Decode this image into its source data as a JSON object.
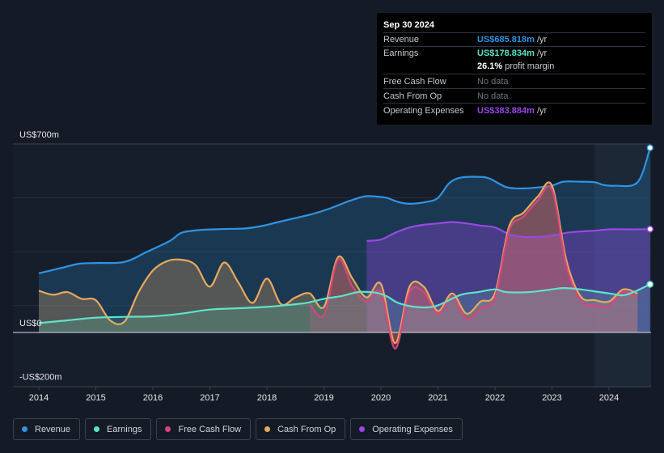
{
  "tooltip": {
    "date": "Sep 30 2024",
    "rows": {
      "revenue": {
        "label": "Revenue",
        "value": "US$685.818m",
        "unit": "/yr"
      },
      "earnings": {
        "label": "Earnings",
        "value": "US$178.834m",
        "unit": "/yr"
      },
      "margin": {
        "value": "26.1%",
        "text": "profit margin"
      },
      "fcf": {
        "label": "Free Cash Flow",
        "value": "No data"
      },
      "cfo": {
        "label": "Cash From Op",
        "value": "No data"
      },
      "opex": {
        "label": "Operating Expenses",
        "value": "US$383.884m",
        "unit": "/yr"
      }
    }
  },
  "legend": [
    {
      "label": "Revenue",
      "color": "#2e94e4"
    },
    {
      "label": "Earnings",
      "color": "#5fe3c8"
    },
    {
      "label": "Free Cash Flow",
      "color": "#d9457a"
    },
    {
      "label": "Cash From Op",
      "color": "#e8a95c"
    },
    {
      "label": "Operating Expenses",
      "color": "#9b47e6"
    }
  ],
  "chart_data": {
    "type": "line",
    "title": "",
    "xlabel": "",
    "ylabel": "",
    "xlim": [
      2013.8,
      2024.75
    ],
    "ylim": [
      -200,
      700
    ],
    "y_tick_labels": [
      {
        "value": 700,
        "label": "US$700m"
      },
      {
        "value": 0,
        "label": "US$0"
      },
      {
        "value": -200,
        "label": "-US$200m"
      }
    ],
    "x_tick_labels": [
      "2014",
      "2015",
      "2016",
      "2017",
      "2018",
      "2019",
      "2020",
      "2021",
      "2022",
      "2023",
      "2024"
    ],
    "highlight_from": 2023.75,
    "series": [
      {
        "name": "Revenue",
        "color": "#2e94e4",
        "points": [
          [
            2014.0,
            220
          ],
          [
            2014.4,
            240
          ],
          [
            2014.7,
            255
          ],
          [
            2015.0,
            258
          ],
          [
            2015.5,
            262
          ],
          [
            2015.9,
            300
          ],
          [
            2016.3,
            340
          ],
          [
            2016.5,
            370
          ],
          [
            2016.8,
            380
          ],
          [
            2017.2,
            384
          ],
          [
            2017.6,
            386
          ],
          [
            2017.9,
            395
          ],
          [
            2018.2,
            410
          ],
          [
            2018.5,
            425
          ],
          [
            2018.8,
            440
          ],
          [
            2019.1,
            460
          ],
          [
            2019.4,
            485
          ],
          [
            2019.7,
            505
          ],
          [
            2019.9,
            505
          ],
          [
            2020.1,
            500
          ],
          [
            2020.3,
            485
          ],
          [
            2020.5,
            478
          ],
          [
            2020.8,
            485
          ],
          [
            2021.0,
            500
          ],
          [
            2021.2,
            555
          ],
          [
            2021.4,
            575
          ],
          [
            2021.7,
            578
          ],
          [
            2021.9,
            572
          ],
          [
            2022.2,
            540
          ],
          [
            2022.5,
            535
          ],
          [
            2022.8,
            540
          ],
          [
            2023.0,
            545
          ],
          [
            2023.2,
            560
          ],
          [
            2023.5,
            560
          ],
          [
            2023.75,
            558
          ],
          [
            2023.9,
            548
          ],
          [
            2024.1,
            545
          ],
          [
            2024.5,
            558
          ],
          [
            2024.72,
            685.818
          ]
        ]
      },
      {
        "name": "Earnings",
        "color": "#5fe3c8",
        "points": [
          [
            2014.0,
            35
          ],
          [
            2014.5,
            45
          ],
          [
            2015.0,
            55
          ],
          [
            2015.5,
            58
          ],
          [
            2016.0,
            60
          ],
          [
            2016.5,
            70
          ],
          [
            2017.0,
            85
          ],
          [
            2017.5,
            90
          ],
          [
            2018.0,
            95
          ],
          [
            2018.5,
            105
          ],
          [
            2018.7,
            110
          ],
          [
            2019.0,
            125
          ],
          [
            2019.3,
            135
          ],
          [
            2019.6,
            150
          ],
          [
            2019.9,
            148
          ],
          [
            2020.1,
            135
          ],
          [
            2020.3,
            110
          ],
          [
            2020.6,
            95
          ],
          [
            2020.9,
            95
          ],
          [
            2021.1,
            110
          ],
          [
            2021.4,
            140
          ],
          [
            2021.7,
            150
          ],
          [
            2022.0,
            160
          ],
          [
            2022.2,
            150
          ],
          [
            2022.6,
            150
          ],
          [
            2023.0,
            160
          ],
          [
            2023.2,
            165
          ],
          [
            2023.5,
            160
          ],
          [
            2024.0,
            145
          ],
          [
            2024.3,
            140
          ],
          [
            2024.72,
            178.834
          ]
        ]
      },
      {
        "name": "Free Cash Flow",
        "color": "#d9457a",
        "points": [
          [
            2018.75,
            105
          ],
          [
            2019.0,
            65
          ],
          [
            2019.25,
            270
          ],
          [
            2019.5,
            170
          ],
          [
            2019.75,
            115
          ],
          [
            2020.0,
            150
          ],
          [
            2020.25,
            -60
          ],
          [
            2020.5,
            150
          ],
          [
            2020.75,
            150
          ],
          [
            2021.0,
            70
          ],
          [
            2021.25,
            130
          ],
          [
            2021.5,
            50
          ],
          [
            2021.75,
            90
          ],
          [
            2022.0,
            130
          ],
          [
            2022.25,
            380
          ],
          [
            2022.5,
            430
          ],
          [
            2022.75,
            490
          ],
          [
            2023.0,
            530
          ],
          [
            2023.25,
            250
          ],
          [
            2023.5,
            120
          ],
          [
            2023.75,
            100
          ],
          [
            2024.0,
            100
          ],
          [
            2024.25,
            150
          ],
          [
            2024.5,
            130
          ]
        ]
      },
      {
        "name": "Cash From Op",
        "color": "#e8a95c",
        "points": [
          [
            2014.0,
            155
          ],
          [
            2014.25,
            140
          ],
          [
            2014.5,
            150
          ],
          [
            2014.75,
            125
          ],
          [
            2015.0,
            120
          ],
          [
            2015.25,
            45
          ],
          [
            2015.5,
            40
          ],
          [
            2015.75,
            150
          ],
          [
            2016.0,
            230
          ],
          [
            2016.25,
            265
          ],
          [
            2016.5,
            270
          ],
          [
            2016.75,
            250
          ],
          [
            2017.0,
            170
          ],
          [
            2017.25,
            260
          ],
          [
            2017.5,
            185
          ],
          [
            2017.75,
            110
          ],
          [
            2018.0,
            200
          ],
          [
            2018.25,
            105
          ],
          [
            2018.5,
            130
          ],
          [
            2018.75,
            145
          ],
          [
            2019.0,
            95
          ],
          [
            2019.25,
            280
          ],
          [
            2019.5,
            200
          ],
          [
            2019.75,
            130
          ],
          [
            2020.0,
            180
          ],
          [
            2020.25,
            -40
          ],
          [
            2020.5,
            170
          ],
          [
            2020.75,
            170
          ],
          [
            2021.0,
            80
          ],
          [
            2021.25,
            145
          ],
          [
            2021.5,
            70
          ],
          [
            2021.75,
            115
          ],
          [
            2022.0,
            145
          ],
          [
            2022.25,
            395
          ],
          [
            2022.5,
            445
          ],
          [
            2022.75,
            505
          ],
          [
            2023.0,
            545
          ],
          [
            2023.25,
            270
          ],
          [
            2023.5,
            135
          ],
          [
            2023.75,
            120
          ],
          [
            2024.0,
            115
          ],
          [
            2024.25,
            160
          ],
          [
            2024.5,
            145
          ]
        ]
      },
      {
        "name": "Operating Expenses",
        "color": "#9b47e6",
        "points": [
          [
            2019.75,
            340
          ],
          [
            2020.0,
            345
          ],
          [
            2020.25,
            370
          ],
          [
            2020.5,
            390
          ],
          [
            2020.75,
            400
          ],
          [
            2021.0,
            405
          ],
          [
            2021.25,
            410
          ],
          [
            2021.5,
            405
          ],
          [
            2021.75,
            397
          ],
          [
            2022.0,
            390
          ],
          [
            2022.25,
            365
          ],
          [
            2022.5,
            355
          ],
          [
            2022.75,
            355
          ],
          [
            2023.0,
            360
          ],
          [
            2023.25,
            370
          ],
          [
            2023.5,
            375
          ],
          [
            2023.75,
            378
          ],
          [
            2024.0,
            383
          ],
          [
            2024.25,
            383
          ],
          [
            2024.5,
            383
          ],
          [
            2024.72,
            383.884
          ]
        ]
      }
    ]
  }
}
